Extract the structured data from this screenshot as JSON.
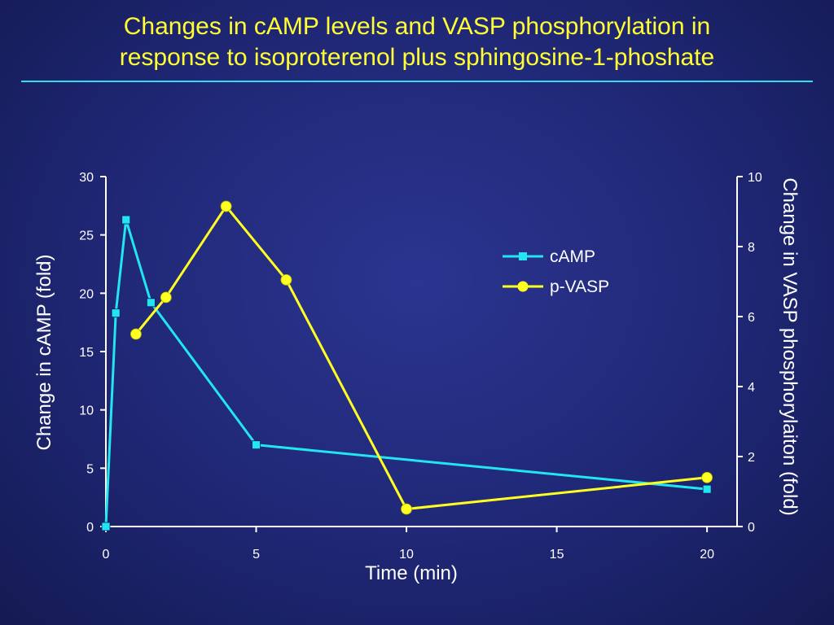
{
  "title_line1": "Changes in cAMP levels and VASP phosphorylation in",
  "title_line2": "response to isoproterenol plus sphingosine-1-phoshate",
  "chart_data": {
    "type": "line",
    "xlabel": "Time (min)",
    "ylabel_left": "Change in cAMP (fold)",
    "ylabel_right": "Change in VASP phosphorylaiton (fold)",
    "xlim": [
      0,
      21
    ],
    "ylim_left": [
      0,
      30
    ],
    "ylim_right": [
      0,
      10
    ],
    "x_ticks": [
      "0",
      "5",
      "10",
      "15",
      "20"
    ],
    "y_left_ticks": [
      "0",
      "5",
      "10",
      "15",
      "20",
      "25",
      "30"
    ],
    "y_right_ticks": [
      "0",
      "2",
      "4",
      "6",
      "8",
      "10"
    ],
    "legend_position": "top-right",
    "grid": false,
    "series": [
      {
        "name": "cAMP",
        "axis": "left",
        "color": "#22e5f0",
        "marker": "square",
        "x": [
          0,
          0.33,
          0.67,
          1.5,
          5,
          20
        ],
        "y": [
          0,
          18.3,
          26.3,
          19.2,
          7.0,
          3.2
        ]
      },
      {
        "name": "p-VASP",
        "axis": "right",
        "color": "#ffff22",
        "marker": "circle",
        "x": [
          1,
          2,
          4,
          6,
          10,
          20
        ],
        "y": [
          5.5,
          6.55,
          9.15,
          7.05,
          0.5,
          1.4
        ]
      }
    ]
  }
}
